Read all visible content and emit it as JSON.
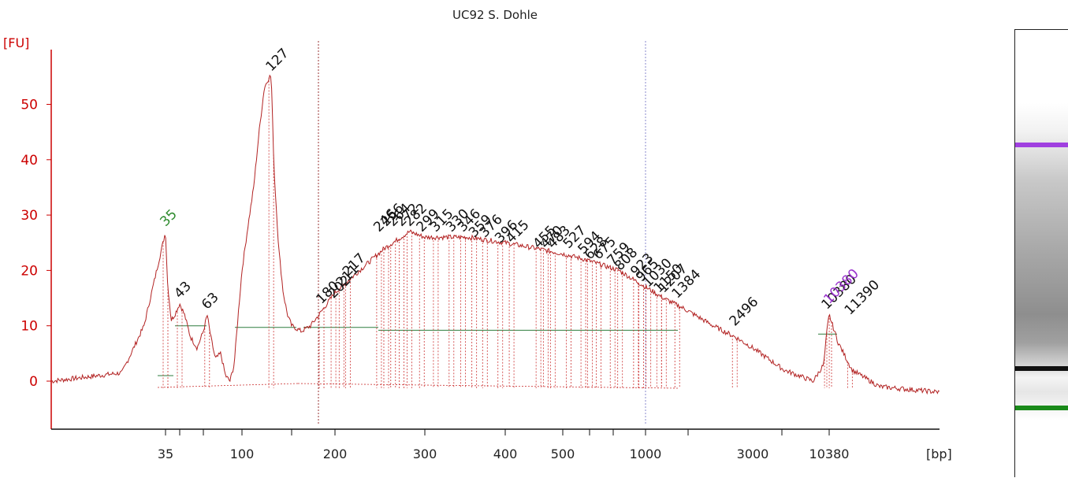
{
  "chart_data": {
    "type": "line",
    "title": "UC92 S. Dohle",
    "ylabel": "[FU]",
    "xlabel": "[bp]",
    "ylim": [
      -8,
      58
    ],
    "yticks": [
      0,
      10,
      20,
      30,
      40,
      50
    ],
    "xticks": [
      "35",
      "100",
      "200",
      "300",
      "400",
      "500",
      "1000",
      "3000",
      "10380"
    ],
    "legend": "none",
    "grid": false,
    "colors": {
      "trace": "#b22222",
      "axis": "#cc0000",
      "marker_lower": "#2e8b2e",
      "marker_upper": "#9a32cd",
      "peak_label": "#111111"
    },
    "series": [
      {
        "values_bp": [
          30,
          33,
          34,
          35,
          36,
          38,
          40,
          43,
          46,
          50,
          55,
          60,
          63,
          66,
          70,
          75,
          80,
          85,
          90,
          95,
          100,
          105,
          110,
          115,
          120,
          125,
          127,
          130,
          135,
          140,
          145,
          150,
          160,
          170,
          180,
          200,
          250,
          280,
          300,
          350,
          400,
          450,
          500,
          600,
          800,
          1000,
          1200,
          1500,
          2000,
          2500,
          3000,
          5000,
          8000,
          9500,
          10000,
          10380,
          10800,
          11500,
          13000,
          17000
        ],
        "values_fu": [
          0,
          1.5,
          10,
          27,
          18,
          11,
          12,
          14,
          12,
          8,
          6,
          9,
          12,
          8,
          4,
          5,
          1,
          0,
          3,
          12,
          20,
          28,
          35,
          45,
          53,
          55,
          55,
          38,
          24,
          16,
          12,
          10,
          9,
          10,
          12,
          16,
          24,
          27,
          26,
          26,
          25,
          24,
          23,
          22,
          20,
          17,
          15,
          13,
          10,
          8,
          6,
          2,
          0,
          3,
          9,
          12,
          7,
          2,
          -1,
          -2
        ]
      }
    ],
    "peak_labels": [
      {
        "text": "35",
        "bp": 35,
        "fu": 27,
        "color": "marker_lower"
      },
      {
        "text": "43",
        "bp": 43,
        "fu": 14,
        "color": "peak_label"
      },
      {
        "text": "63",
        "bp": 63,
        "fu": 12,
        "color": "peak_label"
      },
      {
        "text": "127",
        "bp": 127,
        "fu": 55,
        "color": "peak_label"
      },
      {
        "text": "180",
        "bp": 183,
        "fu": 13,
        "color": "peak_label"
      },
      {
        "text": "202",
        "bp": 198,
        "fu": 14,
        "color": "peak_label"
      },
      {
        "text": "211",
        "bp": 206,
        "fu": 16,
        "color": "peak_label"
      },
      {
        "text": "217",
        "bp": 212,
        "fu": 18,
        "color": "peak_label"
      },
      {
        "text": "246",
        "bp": 244,
        "fu": 26,
        "color": "peak_label"
      },
      {
        "text": "256",
        "bp": 252,
        "fu": 27,
        "color": "peak_label"
      },
      {
        "text": "264",
        "bp": 260,
        "fu": 27,
        "color": "peak_label"
      },
      {
        "text": "272",
        "bp": 270,
        "fu": 27,
        "color": "peak_label"
      },
      {
        "text": "282",
        "bp": 280,
        "fu": 27,
        "color": "peak_label"
      },
      {
        "text": "299",
        "bp": 296,
        "fu": 26,
        "color": "peak_label"
      },
      {
        "text": "315",
        "bp": 312,
        "fu": 26,
        "color": "peak_label"
      },
      {
        "text": "330",
        "bp": 330,
        "fu": 26,
        "color": "peak_label"
      },
      {
        "text": "346",
        "bp": 344,
        "fu": 26,
        "color": "peak_label"
      },
      {
        "text": "359",
        "bp": 358,
        "fu": 25,
        "color": "peak_label"
      },
      {
        "text": "376",
        "bp": 372,
        "fu": 25,
        "color": "peak_label"
      },
      {
        "text": "396",
        "bp": 393,
        "fu": 24,
        "color": "peak_label"
      },
      {
        "text": "415",
        "bp": 410,
        "fu": 24,
        "color": "peak_label"
      },
      {
        "text": "455",
        "bp": 455,
        "fu": 23,
        "color": "peak_label"
      },
      {
        "text": "470",
        "bp": 468,
        "fu": 23,
        "color": "peak_label"
      },
      {
        "text": "483",
        "bp": 481,
        "fu": 23,
        "color": "peak_label"
      },
      {
        "text": "527",
        "bp": 525,
        "fu": 23,
        "color": "peak_label"
      },
      {
        "text": "594",
        "bp": 594,
        "fu": 22,
        "color": "peak_label"
      },
      {
        "text": "628",
        "bp": 628,
        "fu": 21,
        "color": "peak_label"
      },
      {
        "text": "675",
        "bp": 675,
        "fu": 21,
        "color": "peak_label"
      },
      {
        "text": "759",
        "bp": 759,
        "fu": 20,
        "color": "peak_label"
      },
      {
        "text": "808",
        "bp": 808,
        "fu": 19,
        "color": "peak_label"
      },
      {
        "text": "923",
        "bp": 923,
        "fu": 18,
        "color": "peak_label"
      },
      {
        "text": "965",
        "bp": 965,
        "fu": 17,
        "color": "peak_label"
      },
      {
        "text": "1030",
        "bp": 1030,
        "fu": 16,
        "color": "peak_label"
      },
      {
        "text": "1150",
        "bp": 1150,
        "fu": 15,
        "color": "peak_label"
      },
      {
        "text": "1207",
        "bp": 1207,
        "fu": 15,
        "color": "peak_label"
      },
      {
        "text": "1384",
        "bp": 1384,
        "fu": 14,
        "color": "peak_label"
      },
      {
        "text": "2496",
        "bp": 2496,
        "fu": 9,
        "color": "peak_label"
      },
      {
        "text": "10380",
        "bp": 10000,
        "fu": 12,
        "color": "peak_label"
      },
      {
        "text": "10380",
        "bp": 10380,
        "fu": 13,
        "color": "marker_upper"
      },
      {
        "text": "11390",
        "bp": 11390,
        "fu": 11,
        "color": "peak_label"
      }
    ]
  },
  "gel": {
    "upper_marker_color": "#a040e0",
    "lower_marker_color": "#1a8a1a",
    "band_color": "#111111"
  }
}
